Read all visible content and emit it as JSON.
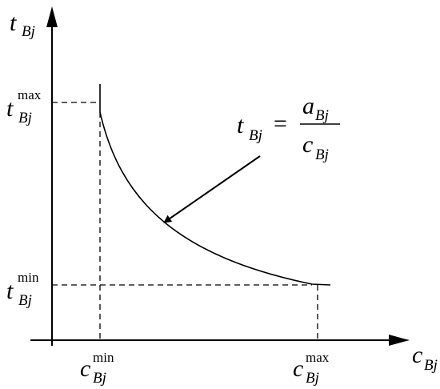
{
  "y_axis_label": {
    "base": "t",
    "sub": "Bj"
  },
  "x_axis_label": {
    "base": "c",
    "sub": "Bj"
  },
  "y_ticks": [
    {
      "base": "t",
      "sub": "Bj",
      "sup": "max"
    },
    {
      "base": "t",
      "sub": "Bj",
      "sup": "min"
    }
  ],
  "x_ticks": [
    {
      "base": "c",
      "sub": "Bj",
      "sup": "min"
    },
    {
      "base": "c",
      "sub": "Bj",
      "sup": "max"
    }
  ],
  "formula": {
    "lhs": {
      "base": "t",
      "sub": "Bj"
    },
    "operator": "=",
    "numerator": {
      "base": "a",
      "sub": "Bj"
    },
    "denominator": {
      "base": "c",
      "sub": "Bj"
    }
  }
}
